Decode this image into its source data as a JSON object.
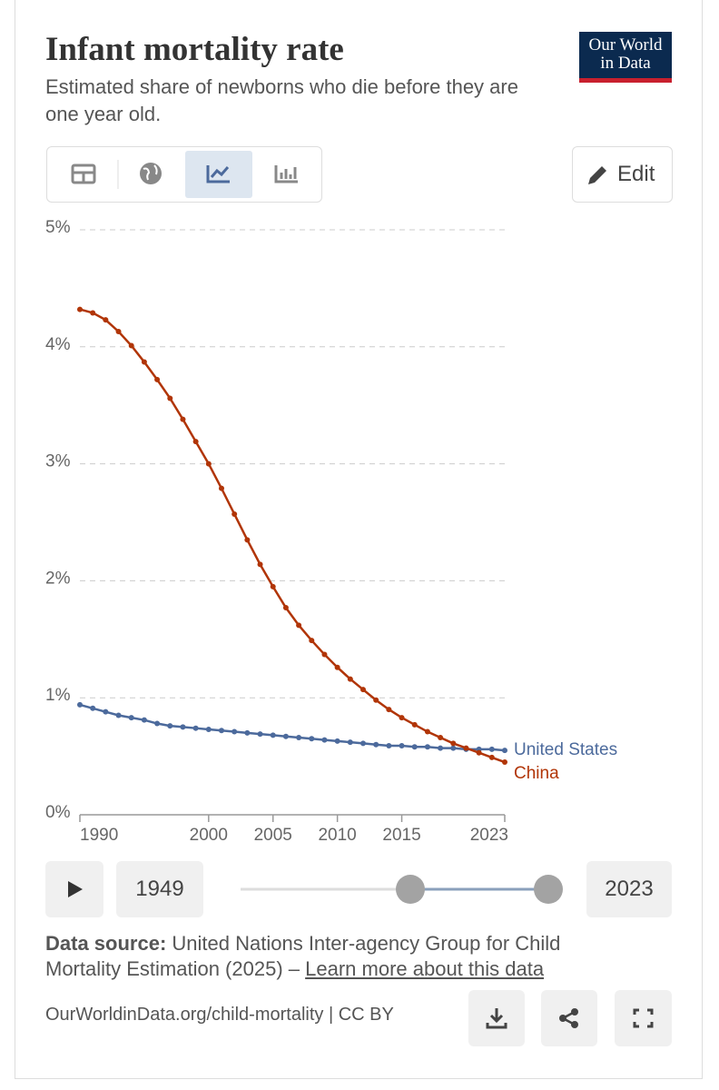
{
  "header": {
    "title": "Infant mortality rate",
    "subtitle": "Estimated share of newborns who die before they are one year old.",
    "logo": [
      "Our World",
      "in Data"
    ],
    "edit": "Edit"
  },
  "chart_data": {
    "type": "line",
    "x": [
      1990,
      1991,
      1992,
      1993,
      1994,
      1995,
      1996,
      1997,
      1998,
      1999,
      2000,
      2001,
      2002,
      2003,
      2004,
      2005,
      2006,
      2007,
      2008,
      2009,
      2010,
      2011,
      2012,
      2013,
      2014,
      2015,
      2016,
      2017,
      2018,
      2019,
      2020,
      2021,
      2022,
      2023
    ],
    "series": [
      {
        "name": "United States",
        "color": "#4c6a9c",
        "values": [
          0.94,
          0.91,
          0.88,
          0.85,
          0.83,
          0.81,
          0.78,
          0.76,
          0.75,
          0.74,
          0.73,
          0.72,
          0.71,
          0.7,
          0.69,
          0.68,
          0.67,
          0.66,
          0.65,
          0.64,
          0.63,
          0.62,
          0.61,
          0.6,
          0.59,
          0.59,
          0.58,
          0.58,
          0.57,
          0.57,
          0.56,
          0.56,
          0.56,
          0.55
        ]
      },
      {
        "name": "China",
        "color": "#b13507",
        "values": [
          4.32,
          4.29,
          4.23,
          4.13,
          4.01,
          3.87,
          3.72,
          3.56,
          3.38,
          3.19,
          3.0,
          2.79,
          2.57,
          2.35,
          2.14,
          1.95,
          1.77,
          1.62,
          1.49,
          1.37,
          1.26,
          1.16,
          1.07,
          0.98,
          0.9,
          0.83,
          0.77,
          0.71,
          0.66,
          0.61,
          0.57,
          0.53,
          0.49,
          0.45
        ]
      }
    ],
    "xlim": [
      1990,
      2023
    ],
    "xticks": [
      1990,
      2000,
      2005,
      2010,
      2015,
      2023
    ],
    "ylim": [
      0,
      5
    ],
    "yticks": [
      {
        "value": 0,
        "label": "0%"
      },
      {
        "value": 1,
        "label": "1%"
      },
      {
        "value": 2,
        "label": "2%"
      },
      {
        "value": 3,
        "label": "3%"
      },
      {
        "value": 4,
        "label": "4%"
      },
      {
        "value": 5,
        "label": "5%"
      }
    ],
    "grid": true
  },
  "timeline": {
    "start": "1949",
    "end": "2023"
  },
  "source": {
    "label": "Data source:",
    "text": "United Nations Inter-agency Group for Child Mortality Estimation (2025) –",
    "link": "Learn more about this data"
  },
  "footer": {
    "url": "OurWorldinData.org/child-mortality | CC BY"
  }
}
